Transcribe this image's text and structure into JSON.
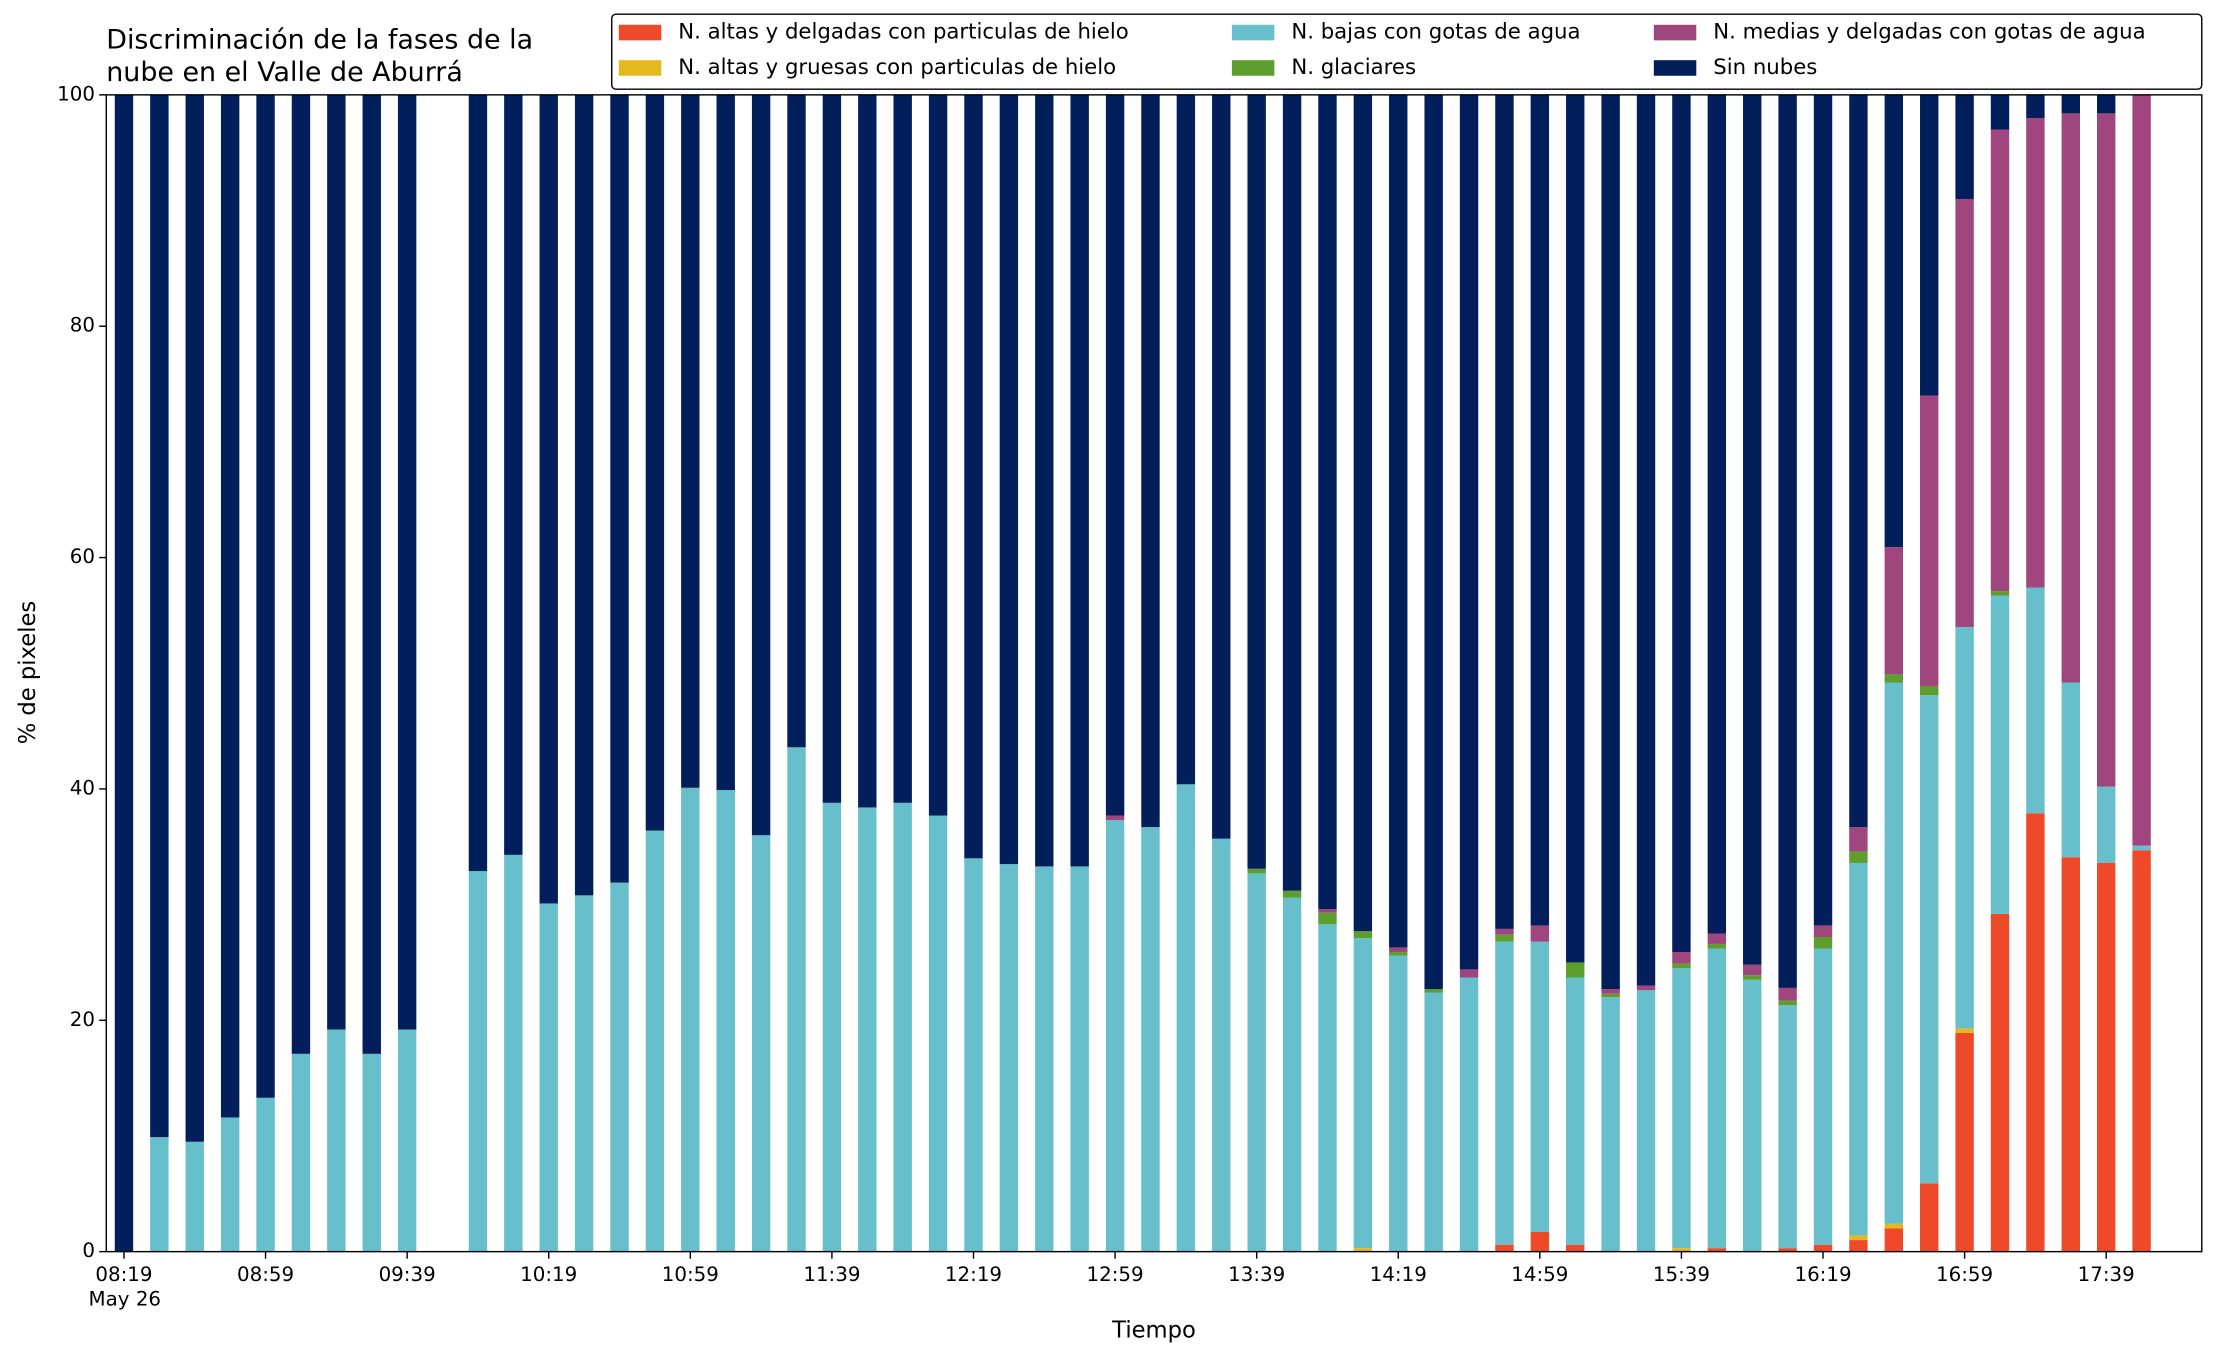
{
  "chart_data": {
    "type": "bar",
    "stacked": true,
    "title": [
      "Discriminación de la fases de la",
      "nube en el Valle de Aburrá"
    ],
    "xlabel": "Tiempo",
    "ylabel": "% de pixeles",
    "x": [
      "08:19",
      "08:29",
      "08:39",
      "08:49",
      "08:59",
      "09:09",
      "09:19",
      "09:29",
      "09:39",
      "09:49",
      "09:59",
      "10:09",
      "10:19",
      "10:29",
      "10:39",
      "10:49",
      "10:59",
      "11:09",
      "11:19",
      "11:29",
      "11:39",
      "11:49",
      "11:59",
      "12:09",
      "12:19",
      "12:29",
      "12:39",
      "12:49",
      "12:59",
      "13:09",
      "13:19",
      "13:29",
      "13:39",
      "13:49",
      "13:59",
      "14:09",
      "14:19",
      "14:29",
      "14:39",
      "14:49",
      "14:59",
      "15:09",
      "15:19",
      "15:29",
      "15:39",
      "15:49",
      "15:59",
      "16:09",
      "16:19",
      "16:29",
      "16:39",
      "16:49",
      "16:59",
      "17:09",
      "17:19",
      "17:29",
      "17:39",
      "17:49"
    ],
    "xlim": [
      "08:14",
      "18:06"
    ],
    "xticks": [
      "08:19",
      "08:59",
      "09:39",
      "10:19",
      "10:59",
      "11:39",
      "12:19",
      "12:59",
      "13:39",
      "14:19",
      "14:59",
      "15:39",
      "16:19",
      "16:59",
      "17:39"
    ],
    "xtick_sublabel": "May 26",
    "ylim": [
      0,
      100
    ],
    "yticks": [
      0,
      20,
      40,
      60,
      80,
      100
    ],
    "grid": false,
    "legend": {
      "loc": "upper right",
      "ncol": 3
    },
    "series": [
      {
        "name": "N. altas y delgadas con particulas de hielo",
        "color": "#ee4a2a",
        "values": [
          0,
          0,
          0,
          0,
          0,
          0,
          0,
          0,
          0,
          null,
          0,
          0,
          0,
          0,
          0,
          0,
          0,
          0,
          0,
          0,
          0,
          0,
          0,
          0,
          0,
          0,
          0,
          0,
          0,
          0,
          0,
          0,
          0,
          0,
          0,
          0,
          0,
          0,
          0,
          0.6,
          1.7,
          0.6,
          0,
          0,
          0,
          0.3,
          0,
          0.3,
          0.6,
          1.0,
          2.0,
          5.9,
          18.9,
          29.2,
          37.9,
          34.1,
          33.6,
          34.7
        ]
      },
      {
        "name": "N. altas y gruesas con particulas de hielo",
        "color": "#e6b820",
        "values": [
          0,
          0,
          0,
          0,
          0,
          0,
          0,
          0,
          0,
          null,
          0,
          0,
          0,
          0,
          0,
          0,
          0,
          0,
          0,
          0,
          0,
          0,
          0,
          0,
          0,
          0,
          0,
          0,
          0,
          0,
          0,
          0,
          0,
          0,
          0,
          0.3,
          0,
          0,
          0,
          0,
          0,
          0,
          0,
          0,
          0.3,
          0,
          0,
          0,
          0,
          0.4,
          0.4,
          0,
          0.4,
          0,
          0,
          0,
          0,
          0
        ]
      },
      {
        "name": "N. bajas con gotas de agua",
        "color": "#67bfcb",
        "values": [
          0,
          9.9,
          9.5,
          11.6,
          13.3,
          17.1,
          19.2,
          17.1,
          19.2,
          null,
          32.9,
          34.3,
          30.1,
          30.8,
          31.9,
          36.4,
          40.1,
          39.9,
          36.0,
          43.6,
          38.8,
          38.4,
          38.8,
          37.7,
          34.0,
          33.5,
          33.3,
          33.3,
          37.3,
          36.7,
          40.4,
          35.7,
          32.7,
          30.6,
          28.3,
          26.8,
          25.6,
          22.4,
          23.7,
          26.2,
          25.1,
          23.1,
          22.0,
          22.6,
          24.2,
          25.9,
          23.5,
          21.0,
          25.6,
          32.2,
          46.8,
          42.2,
          34.7,
          27.5,
          19.5,
          15.1,
          6.6,
          0.4
        ]
      },
      {
        "name": "N. glaciares",
        "color": "#5e9e2e",
        "values": [
          0,
          0,
          0,
          0,
          0,
          0,
          0,
          0,
          0,
          null,
          0,
          0,
          0,
          0,
          0,
          0,
          0,
          0,
          0,
          0,
          0,
          0,
          0,
          0,
          0,
          0,
          0,
          0,
          0,
          0,
          0,
          0,
          0.4,
          0.6,
          1.0,
          0.6,
          0.3,
          0.3,
          0,
          0.6,
          0,
          1.3,
          0.3,
          0,
          0.4,
          0.4,
          0.4,
          0.4,
          1.0,
          1.0,
          0.7,
          0.8,
          0,
          0.4,
          0,
          0,
          0,
          0
        ]
      },
      {
        "name": "N. medias y delgadas con gotas de agua",
        "color": "#a0467e",
        "values": [
          0,
          0,
          0,
          0,
          0,
          0,
          0,
          0,
          0,
          null,
          0,
          0,
          0,
          0,
          0,
          0,
          0,
          0,
          0,
          0,
          0,
          0,
          0,
          0,
          0,
          0,
          0,
          0,
          0.4,
          0,
          0,
          0,
          0,
          0,
          0.3,
          0,
          0.4,
          0,
          0.7,
          0.5,
          1.4,
          0,
          0.4,
          0.4,
          1.0,
          0.9,
          0.9,
          1.1,
          1.0,
          2.1,
          11.0,
          25.1,
          37.0,
          39.9,
          40.6,
          49.2,
          58.2,
          64.9
        ]
      },
      {
        "name": "Sin nubes",
        "color": "#021f5c",
        "values": [
          100,
          90.1,
          90.5,
          88.4,
          86.7,
          82.9,
          80.8,
          82.9,
          80.8,
          null,
          67.1,
          65.7,
          69.9,
          69.2,
          68.1,
          63.6,
          59.9,
          60.1,
          64.0,
          56.4,
          61.2,
          61.6,
          61.2,
          62.3,
          66.0,
          66.5,
          66.7,
          66.7,
          62.3,
          63.3,
          59.6,
          64.3,
          66.9,
          68.8,
          70.4,
          72.3,
          73.7,
          77.3,
          75.6,
          72.1,
          71.8,
          75.0,
          77.3,
          77.0,
          74.1,
          72.5,
          75.2,
          77.2,
          71.8,
          63.3,
          39.1,
          26.0,
          9.0,
          3.0,
          2.0,
          1.6,
          1.6,
          0
        ]
      }
    ]
  }
}
